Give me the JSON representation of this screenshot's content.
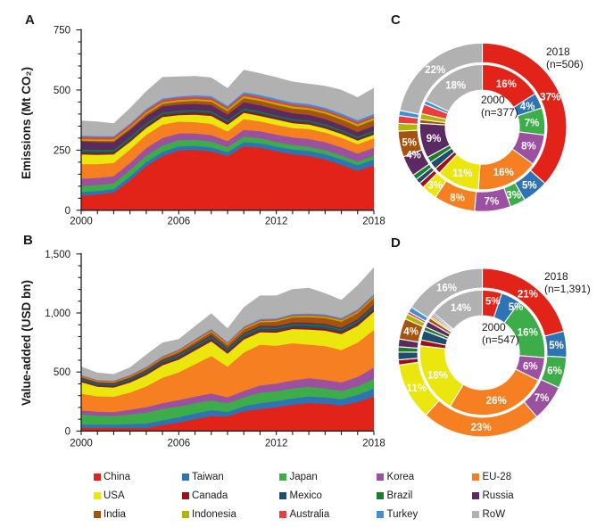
{
  "figure": {
    "background": "#ffffff",
    "text_color": "#1a1a1a",
    "panel_letters": {
      "a": "A",
      "b": "B",
      "c": "C",
      "d": "D"
    }
  },
  "legend": {
    "items": [
      {
        "label": "China",
        "color": "#e2231a"
      },
      {
        "label": "Taiwan",
        "color": "#2e74b5"
      },
      {
        "label": "Japan",
        "color": "#3dad49"
      },
      {
        "label": "Korea",
        "color": "#9c50a0"
      },
      {
        "label": "EU-28",
        "color": "#f57f21"
      },
      {
        "label": "USA",
        "color": "#ebe60e"
      },
      {
        "label": "Canada",
        "color": "#9c1016"
      },
      {
        "label": "Mexico",
        "color": "#1f4d6b"
      },
      {
        "label": "Brazil",
        "color": "#1e7c2e"
      },
      {
        "label": "Russia",
        "color": "#5c2a63"
      },
      {
        "label": "India",
        "color": "#a5530f"
      },
      {
        "label": "Indonesia",
        "color": "#b5b301"
      },
      {
        "label": "Australia",
        "color": "#ee3c3c"
      },
      {
        "label": "Turkey",
        "color": "#3f90d4"
      },
      {
        "label": "RoW",
        "color": "#b1b1b1"
      }
    ]
  },
  "chart_data": [
    {
      "id": "A",
      "type": "area",
      "panel_letter": "A",
      "ylabel": "Emissions (Mt CO₂)",
      "x": [
        2000,
        2001,
        2002,
        2003,
        2004,
        2005,
        2006,
        2007,
        2008,
        2009,
        2010,
        2011,
        2012,
        2013,
        2014,
        2015,
        2016,
        2017,
        2018
      ],
      "xtick_labels": [
        2000,
        2006,
        2012,
        2018
      ],
      "ylim": [
        0,
        750
      ],
      "ytick_labels": [
        0,
        250,
        500,
        750
      ],
      "ytick_minor_step": 50,
      "grid": false,
      "series": [
        {
          "name": "China",
          "values": [
            60,
            65,
            73,
            124,
            183,
            225,
            248,
            250,
            244,
            225,
            265,
            260,
            245,
            232,
            225,
            211,
            188,
            164,
            186
          ]
        },
        {
          "name": "Taiwan",
          "values": [
            15,
            15,
            15,
            16,
            17,
            17,
            17,
            17,
            17,
            16,
            18,
            18,
            19,
            20,
            21,
            22,
            23,
            23,
            25
          ]
        },
        {
          "name": "Japan",
          "values": [
            26,
            25,
            24,
            26,
            27,
            27,
            26,
            25,
            24,
            21,
            23,
            21,
            20,
            19,
            18,
            17,
            16,
            15,
            15
          ]
        },
        {
          "name": "Korea",
          "values": [
            30,
            29,
            29,
            30,
            31,
            31,
            28,
            27,
            27,
            25,
            28,
            29,
            30,
            31,
            32,
            33,
            34,
            33,
            34
          ]
        },
        {
          "name": "EU-28",
          "values": [
            60,
            57,
            55,
            56,
            55,
            56,
            49,
            47,
            47,
            40,
            44,
            41,
            40,
            39,
            41,
            40,
            40,
            39,
            39
          ]
        },
        {
          "name": "USA",
          "values": [
            41,
            39,
            36,
            32,
            29,
            31,
            27,
            31,
            33,
            28,
            27,
            23,
            23,
            21,
            19,
            17,
            16,
            15,
            15
          ]
        },
        {
          "name": "Canada",
          "values": [
            6,
            6,
            6,
            6,
            7,
            7,
            7,
            8,
            8,
            7,
            7,
            7,
            6,
            6,
            6,
            6,
            5,
            5,
            5
          ]
        },
        {
          "name": "Mexico",
          "values": [
            8,
            8,
            7,
            7,
            7,
            6,
            6,
            6,
            6,
            6,
            6,
            6,
            6,
            6,
            6,
            6,
            6,
            6,
            6
          ]
        },
        {
          "name": "Brazil",
          "values": [
            6,
            6,
            6,
            6,
            6,
            5,
            5,
            5,
            5,
            5,
            5,
            5,
            5,
            5,
            5,
            5,
            5,
            5,
            5
          ]
        },
        {
          "name": "Russia",
          "values": [
            34,
            33,
            31,
            30,
            28,
            27,
            26,
            26,
            26,
            24,
            26,
            26,
            25,
            24,
            23,
            22,
            21,
            20,
            20
          ]
        },
        {
          "name": "India",
          "values": [
            4,
            5,
            6,
            7,
            9,
            10,
            12,
            13,
            14,
            15,
            17,
            18,
            19,
            20,
            21,
            22,
            23,
            24,
            25
          ]
        },
        {
          "name": "Indonesia",
          "values": [
            6,
            6,
            6,
            6,
            7,
            7,
            7,
            7,
            7,
            7,
            8,
            8,
            8,
            8,
            8,
            8,
            8,
            8,
            8
          ]
        },
        {
          "name": "Australia",
          "values": [
            9,
            9,
            9,
            9,
            9,
            9,
            9,
            9,
            9,
            8,
            9,
            9,
            9,
            9,
            8,
            8,
            8,
            8,
            8
          ]
        },
        {
          "name": "Turkey",
          "values": [
            5,
            5,
            5,
            5,
            6,
            6,
            6,
            7,
            7,
            7,
            8,
            8,
            8,
            8,
            8,
            9,
            9,
            9,
            9
          ]
        },
        {
          "name": "RoW",
          "values": [
            63,
            61,
            54,
            65,
            74,
            90,
            83,
            80,
            78,
            74,
            93,
            91,
            90,
            87,
            85,
            91,
            99,
            96,
            109
          ]
        }
      ]
    },
    {
      "id": "B",
      "type": "area",
      "panel_letter": "B",
      "ylabel": "Value-added (USD bn)",
      "x": [
        2000,
        2001,
        2002,
        2003,
        2004,
        2005,
        2006,
        2007,
        2008,
        2009,
        2010,
        2011,
        2012,
        2013,
        2014,
        2015,
        2016,
        2017,
        2018
      ],
      "xtick_labels": [
        2000,
        2006,
        2012,
        2018
      ],
      "ylim": [
        0,
        1500
      ],
      "ytick_labels": [
        0,
        500,
        1000,
        1500
      ],
      "ytick_minor_step": 100,
      "grid": false,
      "series": [
        {
          "name": "China",
          "values": [
            27,
            26,
            26,
            25,
            25,
            50,
            71,
            100,
            125,
            123,
            168,
            185,
            200,
            222,
            236,
            230,
            215,
            245,
            291
          ]
        },
        {
          "name": "Taiwan",
          "values": [
            27,
            27,
            28,
            33,
            37,
            41,
            45,
            48,
            51,
            38,
            41,
            50,
            52,
            54,
            56,
            55,
            54,
            60,
            68
          ]
        },
        {
          "name": "Japan",
          "values": [
            87,
            76,
            72,
            82,
            94,
            95,
            92,
            87,
            82,
            73,
            75,
            88,
            85,
            84,
            82,
            76,
            70,
            73,
            82
          ]
        },
        {
          "name": "Korea",
          "values": [
            33,
            34,
            34,
            40,
            46,
            50,
            53,
            56,
            59,
            50,
            55,
            62,
            64,
            68,
            72,
            72,
            72,
            80,
            95
          ]
        },
        {
          "name": "EU-28",
          "values": [
            142,
            130,
            130,
            145,
            175,
            215,
            235,
            275,
            317,
            260,
            325,
            345,
            320,
            315,
            285,
            285,
            275,
            290,
            320
          ]
        },
        {
          "name": "USA",
          "values": [
            98,
            82,
            78,
            85,
            95,
            105,
            108,
            116,
            124,
            110,
            110,
            105,
            112,
            120,
            128,
            132,
            135,
            142,
            153
          ]
        },
        {
          "name": "Canada",
          "values": [
            10,
            9,
            9,
            10,
            11,
            12,
            13,
            14,
            15,
            13,
            14,
            14,
            14,
            14,
            15,
            15,
            14,
            14,
            15
          ]
        },
        {
          "name": "Mexico",
          "values": [
            12,
            11,
            11,
            12,
            13,
            14,
            15,
            16,
            17,
            15,
            17,
            18,
            18,
            18,
            19,
            19,
            18,
            19,
            20
          ]
        },
        {
          "name": "Brazil",
          "values": [
            7,
            7,
            7,
            7,
            8,
            8,
            9,
            9,
            10,
            9,
            10,
            10,
            10,
            10,
            10,
            10,
            9,
            9,
            10
          ]
        },
        {
          "name": "Russia",
          "values": [
            8,
            8,
            8,
            9,
            10,
            11,
            12,
            13,
            14,
            12,
            13,
            14,
            14,
            14,
            15,
            14,
            13,
            14,
            15
          ]
        },
        {
          "name": "India",
          "values": [
            7,
            7,
            8,
            9,
            11,
            13,
            16,
            20,
            24,
            26,
            30,
            30,
            36,
            42,
            46,
            48,
            50,
            52,
            56
          ]
        },
        {
          "name": "Indonesia",
          "values": [
            5,
            5,
            5,
            6,
            6,
            7,
            8,
            9,
            10,
            9,
            10,
            10,
            11,
            11,
            11,
            12,
            12,
            12,
            12
          ]
        },
        {
          "name": "Australia",
          "values": [
            6,
            6,
            6,
            6,
            7,
            7,
            7,
            8,
            8,
            7,
            8,
            8,
            8,
            8,
            9,
            9,
            9,
            9,
            9
          ]
        },
        {
          "name": "Turkey",
          "values": [
            4,
            4,
            4,
            5,
            5,
            6,
            6,
            7,
            8,
            7,
            8,
            9,
            9,
            10,
            10,
            11,
            11,
            11,
            12
          ]
        },
        {
          "name": "RoW",
          "values": [
            74,
            63,
            57,
            65,
            105,
            116,
            89,
            112,
            133,
            119,
            165,
            200,
            195,
            212,
            220,
            180,
            155,
            205,
            229
          ]
        }
      ]
    },
    {
      "id": "C",
      "type": "donut",
      "panel_letter": "C",
      "annotation_lines": [
        "2018",
        "(n=506)"
      ],
      "center_lines": [
        "2000",
        "(n=377)"
      ],
      "outer_ring": {
        "year": "2018",
        "n": 506,
        "shares_pct": [
          37,
          5,
          3,
          7,
          8,
          3,
          1,
          1,
          1,
          4,
          5,
          1.5,
          1.5,
          1,
          22
        ]
      },
      "inner_ring": {
        "year": "2000",
        "n": 377,
        "shares_pct": [
          16,
          4,
          7,
          8,
          16,
          11,
          1.5,
          2,
          1.5,
          9,
          1,
          1.5,
          2.5,
          1,
          18
        ]
      }
    },
    {
      "id": "D",
      "type": "donut",
      "panel_letter": "D",
      "annotation_lines": [
        "2018",
        "(n=1,391)"
      ],
      "center_lines": [
        "2000",
        "(n=547)"
      ],
      "outer_ring": {
        "year": "2018",
        "n": 1391,
        "shares_pct": [
          21,
          5,
          6,
          7,
          23,
          11,
          1,
          1.5,
          1,
          1.5,
          4,
          1,
          0.5,
          1,
          16
        ]
      },
      "inner_ring": {
        "year": "2000",
        "n": 547,
        "shares_pct": [
          5,
          5,
          16,
          6,
          26,
          18,
          1.5,
          2.5,
          1,
          1.5,
          1,
          0.5,
          0.5,
          0.5,
          14
        ]
      }
    }
  ]
}
